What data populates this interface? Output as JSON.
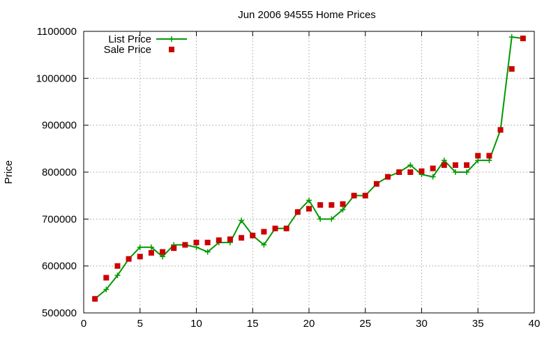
{
  "chart_data": {
    "type": "line",
    "title": "Jun 2006 94555 Home Prices",
    "xlabel": "",
    "ylabel": "Price",
    "xlim": [
      0,
      40
    ],
    "ylim": [
      500000,
      1100000
    ],
    "xticks": [
      0,
      5,
      10,
      15,
      20,
      25,
      30,
      35,
      40
    ],
    "yticks": [
      500000,
      600000,
      700000,
      800000,
      900000,
      1000000,
      1100000
    ],
    "grid": true,
    "legend_position": "top-left",
    "series": [
      {
        "name": "List Price",
        "style": "line-plus",
        "color": "#009900",
        "points": [
          [
            1,
            530000
          ],
          [
            2,
            550000
          ],
          [
            3,
            580000
          ],
          [
            4,
            615000
          ],
          [
            5,
            640000
          ],
          [
            6,
            640000
          ],
          [
            7,
            620000
          ],
          [
            8,
            645000
          ],
          [
            9,
            645000
          ],
          [
            10,
            640000
          ],
          [
            11,
            630000
          ],
          [
            12,
            650000
          ],
          [
            13,
            650000
          ],
          [
            14,
            697000
          ],
          [
            15,
            665000
          ],
          [
            16,
            645000
          ],
          [
            17,
            680000
          ],
          [
            18,
            680000
          ],
          [
            19,
            715000
          ],
          [
            20,
            740000
          ],
          [
            21,
            700000
          ],
          [
            22,
            700000
          ],
          [
            23,
            720000
          ],
          [
            24,
            750000
          ],
          [
            25,
            750000
          ],
          [
            26,
            775000
          ],
          [
            27,
            790000
          ],
          [
            28,
            800000
          ],
          [
            29,
            815000
          ],
          [
            30,
            795000
          ],
          [
            31,
            790000
          ],
          [
            32,
            825000
          ],
          [
            33,
            800000
          ],
          [
            34,
            800000
          ],
          [
            35,
            825000
          ],
          [
            36,
            825000
          ],
          [
            37,
            890000
          ],
          [
            38,
            1088000
          ],
          [
            39,
            1085000
          ]
        ]
      },
      {
        "name": "Sale Price",
        "style": "square",
        "color": "#cc0000",
        "points": [
          [
            1,
            530000
          ],
          [
            2,
            575000
          ],
          [
            3,
            600000
          ],
          [
            4,
            615000
          ],
          [
            5,
            620000
          ],
          [
            6,
            628000
          ],
          [
            7,
            630000
          ],
          [
            8,
            638000
          ],
          [
            9,
            645000
          ],
          [
            10,
            650000
          ],
          [
            11,
            650000
          ],
          [
            12,
            655000
          ],
          [
            13,
            657000
          ],
          [
            14,
            660000
          ],
          [
            15,
            665000
          ],
          [
            16,
            673000
          ],
          [
            17,
            680000
          ],
          [
            18,
            680000
          ],
          [
            19,
            715000
          ],
          [
            20,
            722000
          ],
          [
            21,
            730000
          ],
          [
            22,
            730000
          ],
          [
            23,
            732000
          ],
          [
            24,
            750000
          ],
          [
            25,
            750000
          ],
          [
            26,
            775000
          ],
          [
            27,
            790000
          ],
          [
            28,
            800000
          ],
          [
            29,
            800000
          ],
          [
            30,
            802000
          ],
          [
            31,
            808000
          ],
          [
            32,
            815000
          ],
          [
            33,
            815000
          ],
          [
            34,
            815000
          ],
          [
            35,
            835000
          ],
          [
            36,
            835000
          ],
          [
            37,
            890000
          ],
          [
            38,
            1020000
          ],
          [
            39,
            1085000
          ]
        ]
      }
    ]
  }
}
